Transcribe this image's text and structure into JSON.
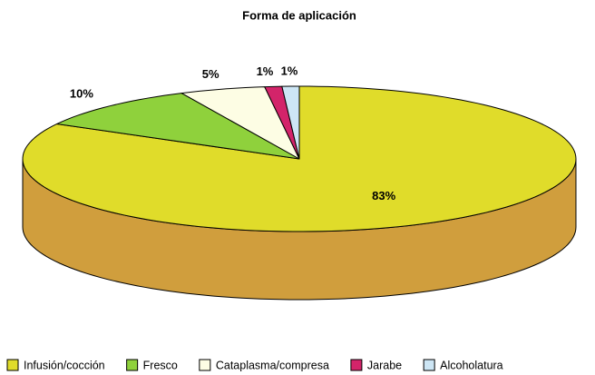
{
  "chart_data": {
    "type": "pie3d",
    "title": "Forma de aplicación",
    "categories": [
      "Infusión/cocción",
      "Fresco",
      "Cataplasma/compresa",
      "Jarabe",
      "Alcoholatura"
    ],
    "values": [
      83,
      10,
      5,
      1,
      1
    ],
    "value_labels": [
      "83%",
      "10%",
      "5%",
      "1%",
      "1%"
    ],
    "colors": [
      "#e0dc2a",
      "#8fd13c",
      "#fdfde4",
      "#d3246a",
      "#cde6f5"
    ],
    "legend": "bottom"
  }
}
